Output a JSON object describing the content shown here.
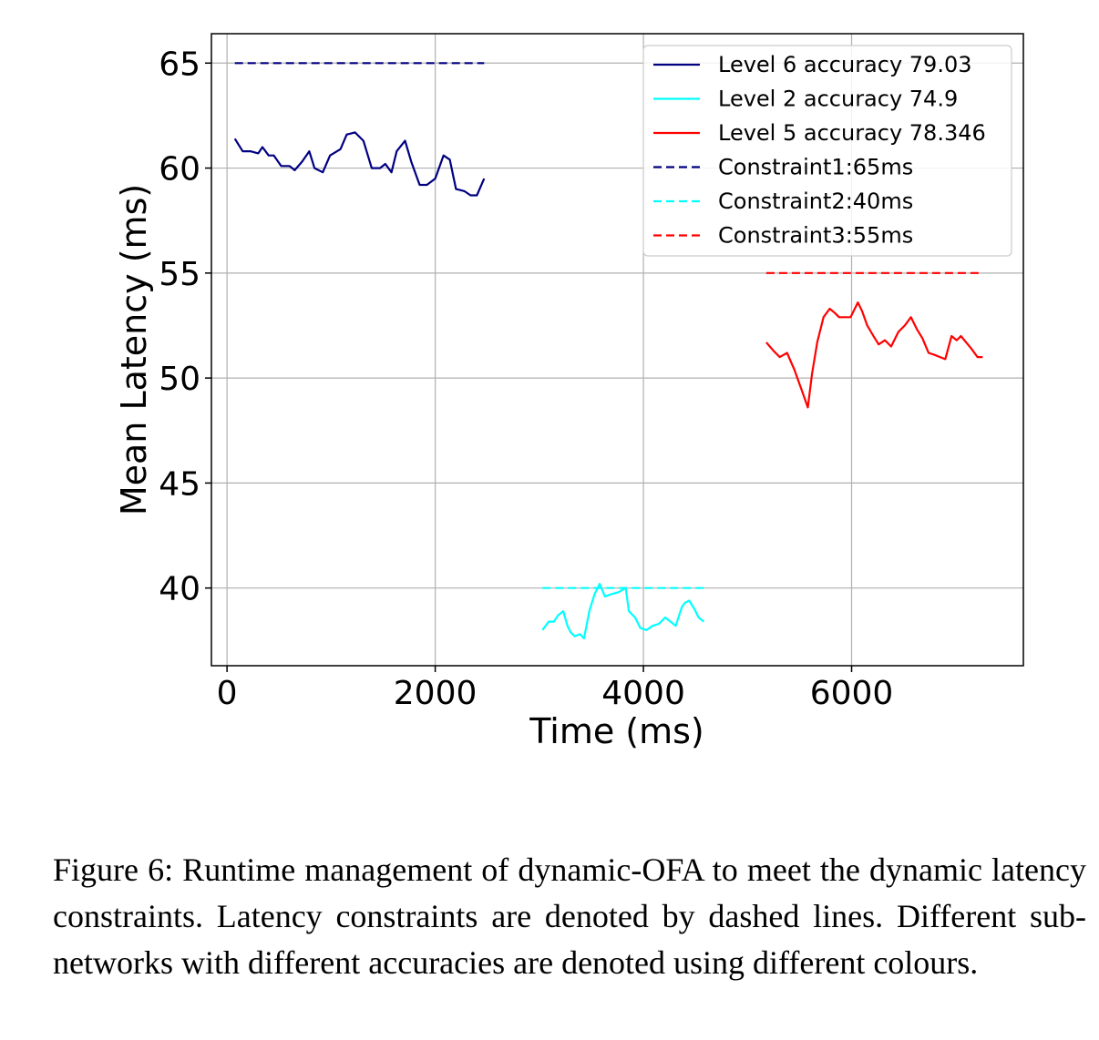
{
  "chart_data": {
    "type": "line",
    "xlabel": "Time (ms)",
    "ylabel": "Mean Latency (ms)",
    "xlim": [
      -150,
      7650
    ],
    "ylim": [
      36.3,
      66.4
    ],
    "xticks": [
      0,
      2000,
      4000,
      6000
    ],
    "yticks": [
      40,
      45,
      50,
      55,
      60,
      65
    ],
    "grid": true,
    "legend_position": "top-right",
    "series": [
      {
        "name": "Level 6 accuracy 79.03",
        "color": "#000080",
        "style": "solid",
        "x": [
          75,
          150,
          225,
          300,
          340,
          400,
          450,
          520,
          600,
          650,
          720,
          790,
          840,
          920,
          990,
          1090,
          1150,
          1230,
          1310,
          1390,
          1470,
          1520,
          1580,
          1630,
          1710,
          1770,
          1850,
          1920,
          2000,
          2080,
          2140,
          2200,
          2280,
          2340,
          2400,
          2470
        ],
        "y": [
          61.4,
          60.8,
          60.8,
          60.7,
          61.0,
          60.6,
          60.6,
          60.1,
          60.1,
          59.9,
          60.3,
          60.8,
          60.0,
          59.8,
          60.6,
          60.9,
          61.6,
          61.7,
          61.3,
          60.0,
          60.0,
          60.2,
          59.8,
          60.8,
          61.3,
          60.3,
          59.2,
          59.2,
          59.5,
          60.6,
          60.4,
          59.0,
          58.9,
          58.7,
          58.7,
          59.5
        ]
      },
      {
        "name": "Level 2 accuracy 74.9",
        "color": "#00ffff",
        "style": "solid",
        "x": [
          3030,
          3090,
          3140,
          3180,
          3230,
          3270,
          3300,
          3340,
          3390,
          3430,
          3480,
          3530,
          3580,
          3630,
          3690,
          3760,
          3830,
          3860,
          3920,
          3970,
          4030,
          4090,
          4150,
          4210,
          4260,
          4310,
          4370,
          4400,
          4440,
          4490,
          4530,
          4580
        ],
        "y": [
          38.0,
          38.4,
          38.4,
          38.7,
          38.9,
          38.2,
          37.9,
          37.7,
          37.8,
          37.6,
          38.9,
          39.7,
          40.2,
          39.6,
          39.7,
          39.8,
          40.0,
          38.9,
          38.6,
          38.1,
          38.0,
          38.2,
          38.3,
          38.6,
          38.4,
          38.2,
          39.1,
          39.3,
          39.4,
          39.0,
          38.6,
          38.4
        ]
      },
      {
        "name": "Level 5 accuracy 78.346",
        "color": "#ff0000",
        "style": "solid",
        "x": [
          5180,
          5250,
          5310,
          5380,
          5450,
          5530,
          5580,
          5620,
          5670,
          5730,
          5790,
          5840,
          5880,
          5940,
          5990,
          6060,
          6100,
          6150,
          6210,
          6260,
          6320,
          6380,
          6450,
          6510,
          6570,
          6630,
          6680,
          6740,
          6800,
          6850,
          6900,
          6960,
          7010,
          7050,
          7100,
          7150,
          7210,
          7260
        ],
        "y": [
          51.7,
          51.3,
          51.0,
          51.2,
          50.4,
          49.3,
          48.6,
          50.2,
          51.7,
          52.9,
          53.3,
          53.1,
          52.9,
          52.9,
          52.9,
          53.6,
          53.2,
          52.5,
          52.0,
          51.6,
          51.8,
          51.5,
          52.2,
          52.5,
          52.9,
          52.3,
          51.9,
          51.2,
          51.1,
          51.0,
          50.9,
          52.0,
          51.8,
          52.0,
          51.7,
          51.4,
          51.0,
          51.0
        ]
      },
      {
        "name": "Constraint1:65ms",
        "color": "#000080",
        "style": "dashed",
        "x": [
          75,
          2470
        ],
        "y": [
          65,
          65
        ]
      },
      {
        "name": "Constraint2:40ms",
        "color": "#00ffff",
        "style": "dashed",
        "x": [
          3030,
          4580
        ],
        "y": [
          40,
          40
        ]
      },
      {
        "name": "Constraint3:55ms",
        "color": "#ff0000",
        "style": "dashed",
        "x": [
          5180,
          7260
        ],
        "y": [
          55,
          55
        ]
      }
    ]
  },
  "caption": "Figure 6: Runtime management of dynamic-OFA to meet the dynamic latency constraints.  Latency constraints are denoted by dashed lines. Different sub-networks with different accuracies are denoted using different colours."
}
